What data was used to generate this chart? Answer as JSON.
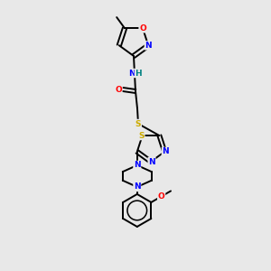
{
  "bg_color": "#e8e8e8",
  "bond_color": "#000000",
  "atom_colors": {
    "N": "#0000ff",
    "O": "#ff0000",
    "S": "#ccaa00",
    "C": "#000000",
    "H": "#008080"
  }
}
